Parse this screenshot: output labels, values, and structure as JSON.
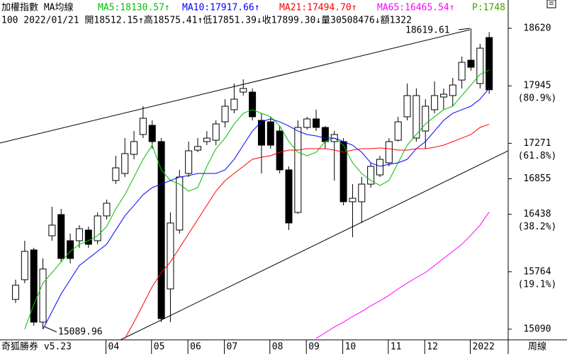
{
  "chart_data": {
    "type": "candlestick",
    "title": "加權指數 MA均線",
    "info": "100 2022/01/21 開18512.15↑高18575.41↑低17851.39↓收17899.30↓量30508476↓額1322",
    "extra": {
      "label": "P:1748",
      "color": "#40a000"
    },
    "footer_left": "奇狐勝券 v5.23",
    "period": "周線",
    "categories": [
      null,
      null,
      null,
      null,
      null,
      null,
      null,
      null,
      null,
      null,
      "04",
      null,
      null,
      null,
      null,
      "05",
      null,
      null,
      null,
      "06",
      null,
      null,
      null,
      "07",
      null,
      null,
      null,
      null,
      "08",
      null,
      null,
      null,
      "09",
      null,
      null,
      null,
      "10",
      null,
      null,
      null,
      null,
      "11",
      null,
      null,
      null,
      "12",
      null,
      null,
      null,
      null,
      "2022",
      null,
      null
    ],
    "open": [
      15439,
      15671,
      16020,
      15173,
      16186,
      16435,
      16128,
      16128,
      16253,
      16128,
      16419,
      16834,
      16917,
      17141,
      17374,
      17482,
      17291,
      15563,
      16253,
      16917,
      17191,
      17291,
      17307,
      17523,
      17665,
      17872,
      17872,
      17540,
      17523,
      17415,
      16959,
      16460,
      17457,
      17557,
      17457,
      17291,
      17291,
      16585,
      16585,
      16792,
      16900,
      17042,
      17307,
      17582,
      17332,
      17415,
      17665,
      17814,
      17831,
      18013,
      18246,
      17972,
      18512.15
    ],
    "high": [
      15671,
      16128,
      16045,
      15920,
      16527,
      16502,
      16211,
      16311,
      16294,
      16460,
      16610,
      17125,
      17332,
      17415,
      17706,
      17540,
      17332,
      16460,
      16959,
      17291,
      17332,
      17415,
      17540,
      17789,
      17972,
      18022,
      17914,
      17623,
      17582,
      17474,
      17000,
      17540,
      17582,
      17665,
      17474,
      17415,
      17332,
      16792,
      16875,
      17042,
      17125,
      17332,
      17582,
      17972,
      17914,
      17789,
      17997,
      17914,
      18038,
      18288,
      18619.61,
      18437,
      18575.41
    ],
    "low": [
      15397,
      15630,
      15131,
      15089.96,
      16128,
      15879,
      15862,
      16045,
      16045,
      16086,
      16377,
      16792,
      16875,
      17083,
      17332,
      17208,
      15173,
      15173,
      16211,
      16875,
      17166,
      17249,
      17249,
      17457,
      17623,
      17831,
      17540,
      16917,
      17208,
      16917,
      16253,
      16444,
      17432,
      17415,
      17208,
      16834,
      16543,
      16169,
      16336,
      16751,
      16875,
      17000,
      17291,
      17540,
      17291,
      17208,
      17623,
      17665,
      17706,
      17914,
      18122,
      17914,
      17851.39
    ],
    "close": [
      15605,
      16003,
      15173,
      15796,
      16311,
      15920,
      15920,
      16269,
      16086,
      16419,
      16568,
      16983,
      17150,
      17291,
      17565,
      17291,
      15214,
      16336,
      16875,
      17183,
      17233,
      17332,
      17498,
      17706,
      17789,
      17914,
      17582,
      17249,
      17249,
      16959,
      16336,
      17457,
      17557,
      17457,
      17291,
      17374,
      16585,
      16626,
      16792,
      17000,
      17083,
      17291,
      17523,
      17831,
      17831,
      17706,
      17831,
      17847,
      17955,
      18221,
      18163,
      18387,
      17899.3
    ],
    "up_color": "#ffffff",
    "down_color": "#000000",
    "series": [
      {
        "name": "MA5:18130.57↑",
        "color": "#00c000",
        "values": [
          null,
          15090,
          15380,
          15630,
          15754,
          15879,
          16003,
          16086,
          16128,
          16186,
          16294,
          16502,
          16668,
          16875,
          17083,
          17249,
          16959,
          16834,
          16792,
          16709,
          16751,
          17000,
          17208,
          17332,
          17498,
          17623,
          17665,
          17623,
          17582,
          17474,
          17291,
          17166,
          17125,
          17166,
          17291,
          17332,
          17249,
          17042,
          16917,
          16834,
          16776,
          16834,
          17042,
          17249,
          17374,
          17498,
          17582,
          17665,
          17706,
          17831,
          17955,
          18080,
          18131
        ]
      },
      {
        "name": "MA10:17917.66↑",
        "color": "#0000ff",
        "values": [
          null,
          null,
          null,
          15090,
          15297,
          15505,
          15671,
          15837,
          15920,
          16003,
          16086,
          16253,
          16419,
          16543,
          16668,
          16751,
          16792,
          16834,
          16875,
          16892,
          16917,
          16917,
          16917,
          16959,
          17083,
          17249,
          17415,
          17523,
          17557,
          17523,
          17474,
          17415,
          17374,
          17357,
          17332,
          17332,
          17291,
          17249,
          17166,
          17042,
          17000,
          17025,
          17042,
          17083,
          17208,
          17291,
          17415,
          17540,
          17623,
          17665,
          17706,
          17789,
          17918
        ]
      },
      {
        "name": "MA21:17494.70↑",
        "color": "#ff0000",
        "values": [
          null,
          null,
          null,
          null,
          null,
          null,
          null,
          null,
          null,
          null,
          null,
          null,
          14982,
          15173,
          15380,
          15588,
          15754,
          15879,
          16045,
          16211,
          16377,
          16543,
          16709,
          16834,
          16917,
          17000,
          17083,
          17108,
          17125,
          17166,
          17191,
          17191,
          17208,
          17208,
          17208,
          17191,
          17166,
          17191,
          17208,
          17208,
          17216,
          17208,
          17191,
          17191,
          17208,
          17208,
          17224,
          17249,
          17291,
          17332,
          17374,
          17457,
          17495
        ]
      },
      {
        "name": "MA65:16465.54↑",
        "color": "#ff00ff",
        "values": [
          null,
          null,
          null,
          null,
          null,
          null,
          null,
          null,
          null,
          null,
          null,
          null,
          null,
          null,
          null,
          null,
          null,
          null,
          null,
          null,
          null,
          null,
          null,
          null,
          null,
          null,
          null,
          null,
          null,
          null,
          null,
          null,
          null,
          14982,
          15048,
          15115,
          15173,
          15239,
          15297,
          15364,
          15422,
          15488,
          15563,
          15630,
          15696,
          15754,
          15837,
          15920,
          16003,
          16086,
          16194,
          16311,
          16466
        ]
      }
    ],
    "ylim": [
      14965,
      18786
    ],
    "yticks": [
      18620,
      17945,
      17271,
      16855,
      16438,
      15764,
      15090
    ],
    "fib_labels": [
      {
        "value": 17945,
        "label": "(80.9%)"
      },
      {
        "value": 17271,
        "label": "(61.8%)"
      },
      {
        "value": 16438,
        "label": "(38.2%)"
      },
      {
        "value": 15764,
        "label": "(19.1%)"
      }
    ],
    "grid": false
  }
}
